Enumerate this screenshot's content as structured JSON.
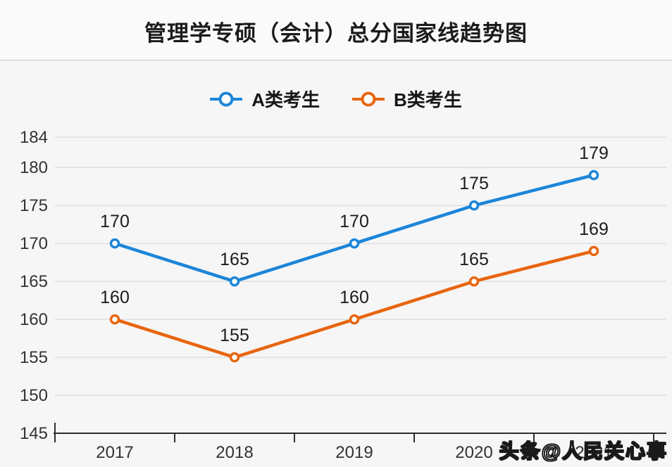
{
  "title": "管理学专硕（会计）总分国家线趋势图",
  "watermark": "头条@人民关心事",
  "colors": {
    "series_a": "#1c86d9",
    "series_b": "#e8650f",
    "grid": "#e0e0e2",
    "axis": "#2f2f2f",
    "tick_label": "#333333",
    "data_label": "#1c1c1c",
    "background": "#f6f6f7",
    "divider": "#c7c7ca",
    "marker_fill": "#ffffff"
  },
  "chart_data": {
    "type": "line",
    "title": "管理学专硕（会计）总分国家线趋势图",
    "categories": [
      "2017",
      "2018",
      "2019",
      "2020",
      "2021"
    ],
    "series": [
      {
        "name": "A类考生",
        "color": "#1c86d9",
        "values": [
          170,
          165,
          170,
          175,
          179
        ]
      },
      {
        "name": "B类考生",
        "color": "#e8650f",
        "values": [
          160,
          155,
          160,
          165,
          169
        ]
      }
    ],
    "yticks": [
      145,
      150,
      155,
      160,
      165,
      170,
      175,
      180,
      184
    ],
    "ylim": [
      145,
      184
    ],
    "xlabel": "",
    "ylabel": "",
    "grid": true,
    "legend_position": "top",
    "data_labels": true
  }
}
